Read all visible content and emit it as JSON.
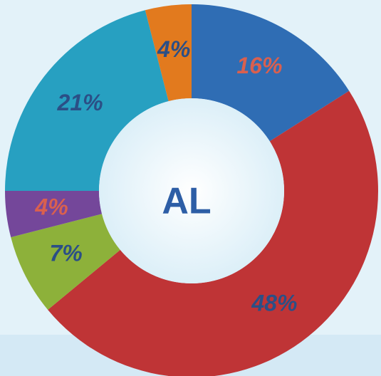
{
  "chart_data": {
    "type": "donut",
    "center_label": "AL",
    "values": [
      16,
      48,
      7,
      4,
      21,
      4
    ],
    "value_labels": [
      "16%",
      "48%",
      "7%",
      "4%",
      "21%",
      "4%"
    ],
    "colors": [
      "#2f6db4",
      "#bf3436",
      "#8db13a",
      "#74479a",
      "#27a0c1",
      "#e27a1e"
    ],
    "label_colors": [
      "#d9604f",
      "#2b4f86",
      "#2b4f86",
      "#d9604f",
      "#2b4f86",
      "#2b4f86"
    ],
    "center_label_color": "#2d5ea6"
  }
}
